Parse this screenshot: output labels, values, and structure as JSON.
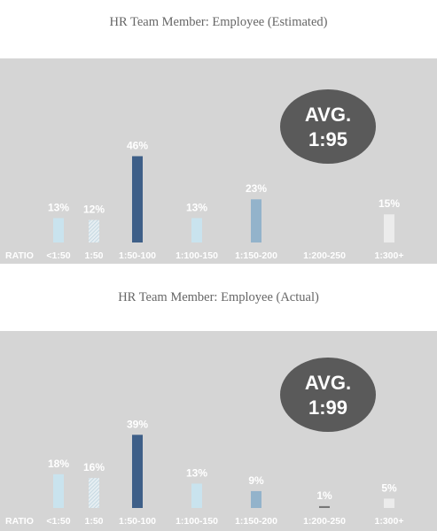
{
  "colors": {
    "panel_bg": "#d5d5d5",
    "avg_badge": "#5a5a5a",
    "label_text": "#ffffff",
    "bar_light_blue": "#c9e3ee",
    "bar_dark_blue": "#3e5f88",
    "bar_mid_blue": "#93b3cb",
    "bar_pale": "#ececec"
  },
  "chart_data": [
    {
      "type": "bar",
      "title": "HR Team Member: Employee (Estimated)",
      "average_badge": [
        "AVG.",
        "1:95"
      ],
      "axis_label": "RATIO",
      "categories": [
        "<1:50",
        "1:50",
        "1:50-100",
        "1:100-150",
        "1:150-200",
        "1:200-250",
        "1:300+"
      ],
      "values": [
        13,
        12,
        46,
        13,
        23,
        0,
        15
      ],
      "value_labels": [
        "13%",
        "12%",
        "46%",
        "13%",
        "23%",
        "",
        "15%"
      ],
      "ylim": [
        0,
        46
      ],
      "bar_styles": [
        "light-blue",
        "hatched",
        "dark-blue",
        "light-blue",
        "mid-blue",
        "none",
        "pale"
      ]
    },
    {
      "type": "bar",
      "title": "HR Team Member: Employee (Actual)",
      "average_badge": [
        "AVG.",
        "1:99"
      ],
      "axis_label": "RATIO",
      "categories": [
        "<1:50",
        "1:50",
        "1:50-100",
        "1:100-150",
        "1:150-200",
        "1:200-250",
        "1:300+"
      ],
      "values": [
        18,
        16,
        39,
        13,
        9,
        1,
        5
      ],
      "value_labels": [
        "18%",
        "16%",
        "39%",
        "13%",
        "9%",
        "1%",
        "5%"
      ],
      "ylim": [
        0,
        46
      ],
      "bar_styles": [
        "light-blue",
        "hatched",
        "dark-blue",
        "light-blue",
        "mid-blue",
        "dark-gray",
        "pale"
      ]
    }
  ]
}
